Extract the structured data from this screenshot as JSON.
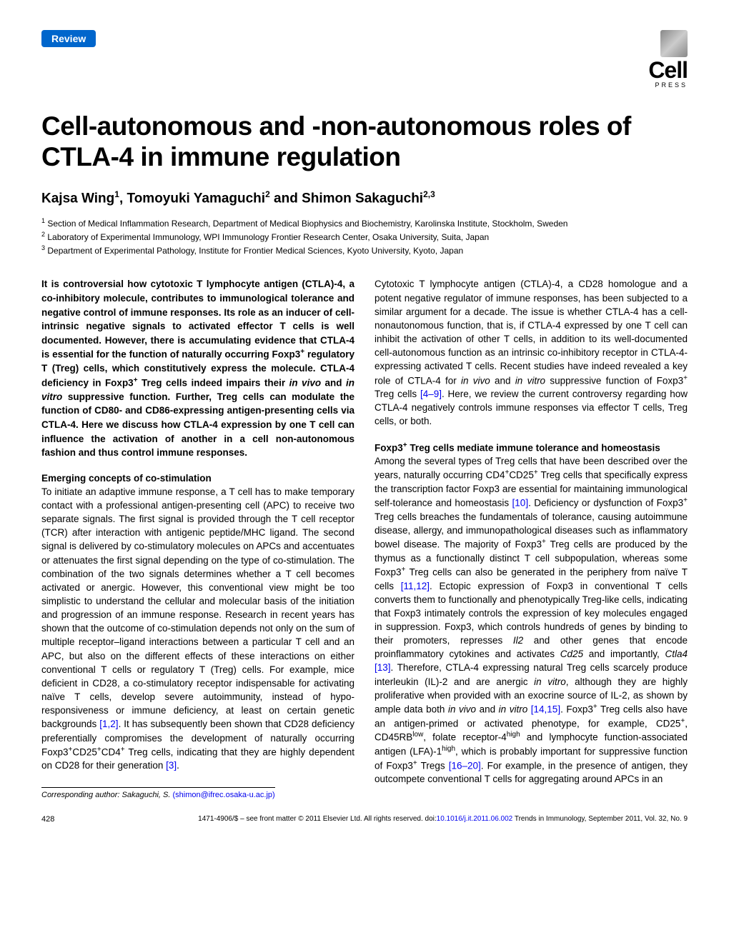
{
  "badge": "Review",
  "logo": {
    "brand": "Cell",
    "subtext": "PRESS"
  },
  "title": "Cell-autonomous and -non-autonomous roles of CTLA-4 in immune regulation",
  "authors_html": "Kajsa Wing<sup>1</sup>, Tomoyuki Yamaguchi<sup>2</sup> and Shimon Sakaguchi<sup>2,3</sup>",
  "affiliations": [
    "<sup>1</sup> Section of Medical Inflammation Research, Department of Medical Biophysics and Biochemistry, Karolinska Institute, Stockholm, Sweden",
    "<sup>2</sup> Laboratory of Experimental Immunology, WPI Immunology Frontier Research Center, Osaka University, Suita, Japan",
    "<sup>3</sup> Department of Experimental Pathology, Institute for Frontier Medical Sciences, Kyoto University, Kyoto, Japan"
  ],
  "abstract_html": "It is controversial how cytotoxic T lymphocyte antigen (CTLA)-4, a co-inhibitory molecule, contributes to immunological tolerance and negative control of immune responses. Its role as an inducer of cell-intrinsic negative signals to activated effector T cells is well documented. However, there is accumulating evidence that CTLA-4 is essential for the function of naturally occurring Foxp3<sup>+</sup> regulatory T (Treg) cells, which constitutively express the molecule. CTLA-4 deficiency in Foxp3<sup>+</sup> Treg cells indeed impairs their <span class=\"italic\">in vivo</span> and <span class=\"italic\">in vitro</span> suppressive function. Further, Treg cells can modulate the function of CD80- and CD86-expressing antigen-presenting cells via CTLA-4. Here we discuss how CTLA-4 expression by one T cell can influence the activation of another in a cell non-autonomous fashion and thus control immune responses.",
  "sections": {
    "heading1": "Emerging concepts of co-stimulation",
    "para1_html": "To initiate an adaptive immune response, a T cell has to make temporary contact with a professional antigen-presenting cell (APC) to receive two separate signals. The first signal is provided through the T cell receptor (TCR) after interaction with antigenic peptide/MHC ligand. The second signal is delivered by co-stimulatory molecules on APCs and accentuates or attenuates the first signal depending on the type of co-stimulation. The combination of the two signals determines whether a T cell becomes activated or anergic. However, this conventional view might be too simplistic to understand the cellular and molecular basis of the initiation and progression of an immune response. Research in recent years has shown that the outcome of co-stimulation depends not only on the sum of multiple receptor–ligand interactions between a particular T cell and an APC, but also on the different effects of these interactions on either conventional T cells or regulatory T (Treg) cells. For example, mice deficient in CD28, a co-stimulatory receptor indispensable for activating naïve T cells, develop severe autoimmunity, instead of hypo-responsiveness or immune deficiency, at least on certain genetic backgrounds <span class=\"ref-link\">[1,2]</span>. It has subsequently been shown that CD28 deficiency preferentially compromises the development of naturally occurring Foxp3<sup>+</sup>CD25<sup>+</sup>CD4<sup>+</sup> Treg cells, indicating that they are highly dependent on CD28 for their generation <span class=\"ref-link\">[3]</span>.",
    "intro_right_html": "Cytotoxic T lymphocyte antigen (CTLA)-4, a CD28 homologue and a potent negative regulator of immune responses, has been subjected to a similar argument for a decade. The issue is whether CTLA-4 has a cell-nonautonomous function, that is, if CTLA-4 expressed by one T cell can inhibit the activation of other T cells, in addition to its well-documented cell-autonomous function as an intrinsic co-inhibitory receptor in CTLA-4-expressing activated T cells. Recent studies have indeed revealed a key role of CTLA-4 for <span class=\"italic\">in vivo</span> and <span class=\"italic\">in vitro</span> suppressive function of Foxp3<sup>+</sup> Treg cells <span class=\"ref-link\">[4–9]</span>. Here, we review the current controversy regarding how CTLA-4 negatively controls immune responses via effector T cells, Treg cells, or both.",
    "heading2_html": "Foxp3<sup>+</sup> Treg cells mediate immune tolerance and homeostasis",
    "para2_html": "Among the several types of Treg cells that have been described over the years, naturally occurring CD4<sup>+</sup>CD25<sup>+</sup> Treg cells that specifically express the transcription factor Foxp3 are essential for maintaining immunological self-tolerance and homeostasis <span class=\"ref-link\">[10]</span>. Deficiency or dysfunction of Foxp3<sup>+</sup> Treg cells breaches the fundamentals of tolerance, causing autoimmune disease, allergy, and immunopathological diseases such as inflammatory bowel disease. The majority of Foxp3<sup>+</sup> Treg cells are produced by the thymus as a functionally distinct T cell subpopulation, whereas some Foxp3<sup>+</sup> Treg cells can also be generated in the periphery from naïve T cells <span class=\"ref-link\">[11,12]</span>. Ectopic expression of Foxp3 in conventional T cells converts them to functionally and phenotypically Treg-like cells, indicating that Foxp3 intimately controls the expression of key molecules engaged in suppression. Foxp3, which controls hundreds of genes by binding to their promoters, represses <span class=\"italic\">Il2</span> and other genes that encode proinflammatory cytokines and activates <span class=\"italic\">Cd25</span> and importantly, <span class=\"italic\">Ctla4</span> <span class=\"ref-link\">[13]</span>. Therefore, CTLA-4 expressing natural Treg cells scarcely produce interleukin (IL)-2 and are anergic <span class=\"italic\">in vitro</span>, although they are highly proliferative when provided with an exocrine source of IL-2, as shown by ample data both <span class=\"italic\">in vivo</span> and <span class=\"italic\">in vitro</span> <span class=\"ref-link\">[14,15]</span>. Foxp3<sup>+</sup> Treg cells also have an antigen-primed or activated phenotype, for example, CD25<sup>+</sup>, CD45RB<sup>low</sup>, folate receptor-4<sup>high</sup> and lymphocyte function-associated antigen (LFA)-1<sup>high</sup>, which is probably important for suppressive function of Foxp3<sup>+</sup> Tregs <span class=\"ref-link\">[16–20]</span>. For example, in the presence of antigen, they outcompete conventional T cells for aggregating around APCs in an"
  },
  "corresponding": {
    "label": "Corresponding author",
    "name": "Sakaguchi, S.",
    "email": "(shimon@ifrec.osaka-u.ac.jp)"
  },
  "footer": {
    "page_number": "428",
    "copyright": "1471-4906/$ – see front matter © 2011 Elsevier Ltd. All rights reserved. doi:",
    "doi": "10.1016/j.it.2011.06.002",
    "journal": " Trends in Immunology, September 2011, Vol. 32, No. 9"
  },
  "colors": {
    "badge_bg": "#0066cc",
    "link": "#0000ee",
    "text": "#000000",
    "bg": "#ffffff"
  }
}
